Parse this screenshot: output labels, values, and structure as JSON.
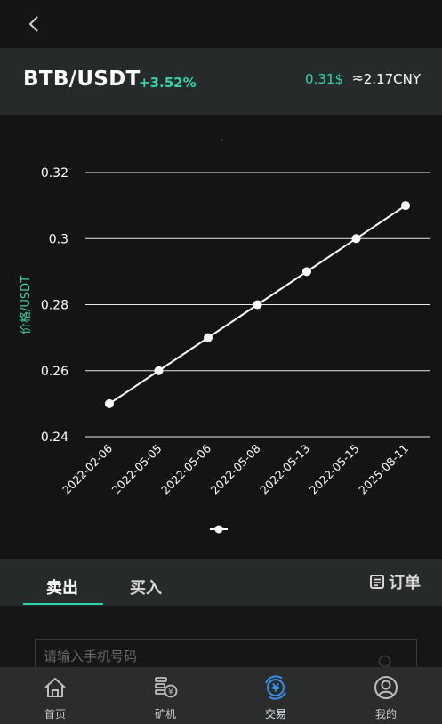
{
  "header": {
    "back_icon": "chevron-left-icon"
  },
  "pair": {
    "name": "BTB/USDT",
    "change": "+3.52%",
    "price_usd": "0.31$",
    "approx": "≈",
    "price_cny": "2.17CNY"
  },
  "colors": {
    "accent": "#2fd5a8",
    "background": "#141414",
    "panel": "#272a2a",
    "nav": "#2b2d2d"
  },
  "chart_data": {
    "type": "line",
    "categories": [
      "2022-02-06",
      "2022-05-05",
      "2022-05-06",
      "2022-05-08",
      "2022-05-13",
      "2022-05-15",
      "2025-08-11"
    ],
    "values": [
      0.25,
      0.26,
      0.27,
      0.28,
      0.29,
      0.3,
      0.31
    ],
    "ylabel": "价格/USDT",
    "ylim": [
      0.24,
      0.32
    ],
    "yticks": [
      "0.24",
      "0.26",
      "0.28",
      "0.3",
      "0.32"
    ],
    "ytick_values": [
      0.24,
      0.26,
      0.28,
      0.3,
      0.32
    ],
    "grid": true,
    "legend": "bottom"
  },
  "tabs": {
    "sell": "卖出",
    "buy": "买入",
    "orders": "订单"
  },
  "form": {
    "phone_placeholder": "请输入手机号码"
  },
  "nav": [
    {
      "label": "首页",
      "icon": "home-icon"
    },
    {
      "label": "矿机",
      "icon": "miner-icon"
    },
    {
      "label": "交易",
      "icon": "trade-icon"
    },
    {
      "label": "我的",
      "icon": "profile-icon"
    }
  ]
}
